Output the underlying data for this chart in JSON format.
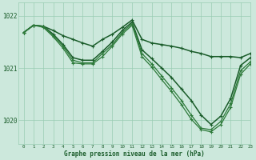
{
  "bg_color": "#cce8dc",
  "grid_color": "#99ccb3",
  "line_color_dark": "#1a5c2a",
  "line_color_med": "#2d7a3a",
  "xlabel": "Graphe pression niveau de la mer (hPa)",
  "xlim": [
    -0.5,
    23
  ],
  "ylim": [
    1019.55,
    1022.25
  ],
  "yticks": [
    1020,
    1021,
    1022
  ],
  "xticks": [
    0,
    1,
    2,
    3,
    4,
    5,
    6,
    7,
    8,
    9,
    10,
    11,
    12,
    13,
    14,
    15,
    16,
    17,
    18,
    19,
    20,
    21,
    22,
    23
  ],
  "series": [
    {
      "values": [
        1021.68,
        1021.82,
        1021.8,
        1021.72,
        1021.62,
        1021.55,
        1021.48,
        1021.42,
        1021.55,
        1021.65,
        1021.78,
        1021.92,
        1021.55,
        1021.48,
        1021.45,
        1021.42,
        1021.38,
        1021.32,
        1021.28,
        1021.22,
        1021.22,
        1021.22,
        1021.2,
        1021.28
      ],
      "color": "#1a5c2a",
      "lw": 1.1,
      "marker": true
    },
    {
      "values": [
        1021.68,
        1021.82,
        1021.8,
        1021.65,
        1021.45,
        1021.2,
        1021.15,
        1021.15,
        1021.32,
        1021.5,
        1021.72,
        1021.88,
        1021.35,
        1021.18,
        1021.0,
        1020.82,
        1020.6,
        1020.38,
        1020.1,
        1019.92,
        1020.08,
        1020.42,
        1021.05,
        1021.2
      ],
      "color": "#1a5c2a",
      "lw": 1.1,
      "marker": true
    },
    {
      "values": [
        1021.68,
        1021.82,
        1021.8,
        1021.62,
        1021.42,
        1021.15,
        1021.1,
        1021.1,
        1021.28,
        1021.45,
        1021.68,
        1021.85,
        1021.28,
        1021.08,
        1020.85,
        1020.62,
        1020.38,
        1020.1,
        1019.85,
        1019.82,
        1019.98,
        1020.32,
        1020.95,
        1021.12
      ],
      "color": "#2d7a3a",
      "lw": 0.9,
      "marker": true
    },
    {
      "values": [
        1021.68,
        1021.82,
        1021.78,
        1021.6,
        1021.38,
        1021.1,
        1021.08,
        1021.08,
        1021.22,
        1021.42,
        1021.65,
        1021.82,
        1021.22,
        1021.02,
        1020.78,
        1020.55,
        1020.3,
        1020.02,
        1019.82,
        1019.78,
        1019.92,
        1020.25,
        1020.88,
        1021.08
      ],
      "color": "#2d7a3a",
      "lw": 0.9,
      "marker": true
    }
  ]
}
